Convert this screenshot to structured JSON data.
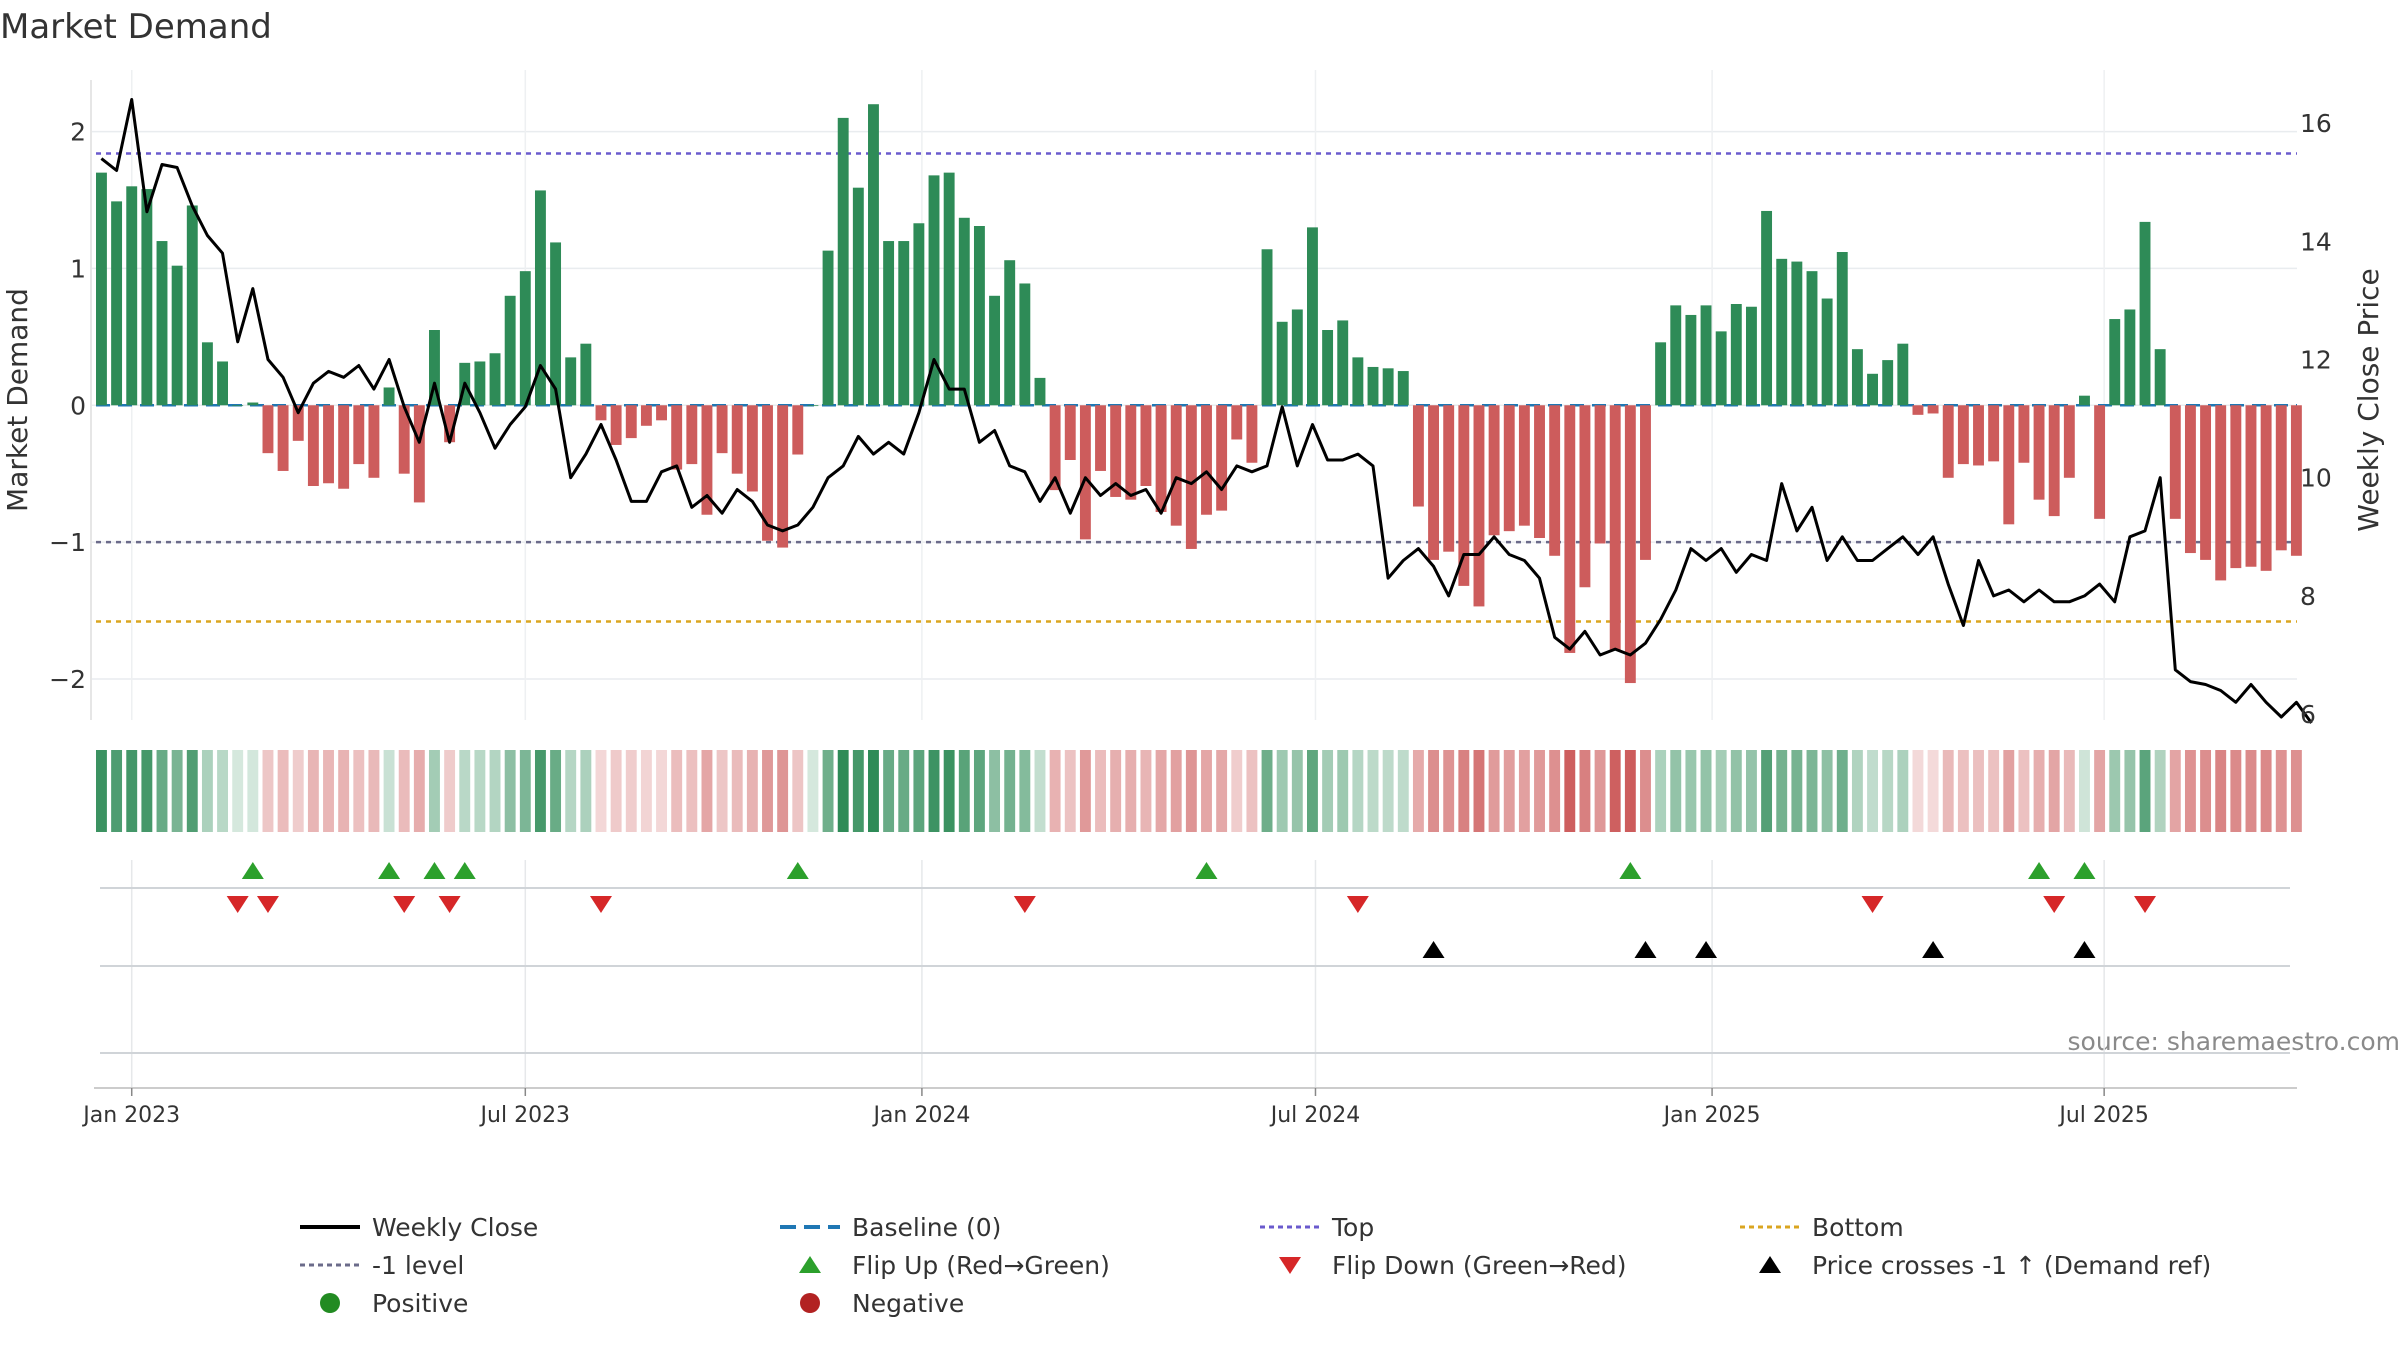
{
  "chart_data": {
    "type": "bar+line",
    "title": "Market Demand",
    "ylabel_left": "Market Demand",
    "ylabel_right": "Weekly Close Price",
    "ylim_left": [
      -2.3,
      2.45
    ],
    "ylim_right": [
      5.9,
      16.9
    ],
    "yticks_left": [
      2,
      1,
      0,
      -1,
      -2
    ],
    "ytick_labels_left": [
      "2",
      "1",
      "0",
      "−1",
      "−2"
    ],
    "yticks_right": [
      16,
      14,
      12,
      10,
      8,
      6
    ],
    "ytick_labels_right": [
      "16",
      "14",
      "12",
      "10",
      "8",
      "6"
    ],
    "start_date": "2022-12-19",
    "xticks": [
      {
        "label": "Jan 2023",
        "week": 2
      },
      {
        "label": "Jul 2023",
        "week": 28
      },
      {
        "label": "Jan 2024",
        "week": 54.2
      },
      {
        "label": "Jul 2024",
        "week": 80.2
      },
      {
        "label": "Jan 2025",
        "week": 106.4
      },
      {
        "label": "Jul 2025",
        "week": 132.3
      }
    ],
    "reference_lines": {
      "top": 1.84,
      "minus_one": -1.0,
      "bottom": -1.58
    },
    "series": [
      {
        "name": "Market Demand",
        "values": [
          1.7,
          1.49,
          1.6,
          1.58,
          1.2,
          1.02,
          1.46,
          0.46,
          0.32,
          0.0,
          0.02,
          -0.35,
          -0.48,
          -0.26,
          -0.59,
          -0.57,
          -0.61,
          -0.43,
          -0.53,
          0.13,
          -0.5,
          -0.71,
          0.55,
          -0.27,
          0.31,
          0.32,
          0.38,
          0.8,
          0.98,
          1.57,
          1.19,
          0.35,
          0.45,
          -0.11,
          -0.29,
          -0.24,
          -0.15,
          -0.11,
          -0.47,
          -0.43,
          -0.8,
          -0.35,
          -0.5,
          -0.63,
          -0.99,
          -1.04,
          -0.36,
          0.0,
          1.13,
          2.1,
          1.59,
          2.2,
          1.2,
          1.2,
          1.33,
          1.68,
          1.7,
          1.37,
          1.31,
          0.8,
          1.06,
          0.89,
          0.2,
          -0.62,
          -0.4,
          -0.98,
          -0.48,
          -0.67,
          -0.69,
          -0.59,
          -0.78,
          -0.88,
          -1.05,
          -0.8,
          -0.77,
          -0.25,
          -0.42,
          1.14,
          0.61,
          0.7,
          1.3,
          0.55,
          0.62,
          0.35,
          0.28,
          0.27,
          0.25,
          -0.74,
          -1.13,
          -1.07,
          -1.32,
          -1.47,
          -0.95,
          -0.92,
          -0.88,
          -0.97,
          -1.1,
          -1.81,
          -1.33,
          -1.01,
          -1.79,
          -2.03,
          -1.13,
          0.46,
          0.73,
          0.66,
          0.73,
          0.54,
          0.74,
          0.72,
          1.42,
          1.07,
          1.05,
          0.98,
          0.78,
          1.12,
          0.41,
          0.23,
          0.33,
          0.45,
          -0.07,
          -0.06,
          -0.53,
          -0.43,
          -0.44,
          -0.41,
          -0.87,
          -0.42,
          -0.69,
          -0.81,
          -0.53,
          0.07,
          -0.83,
          0.63,
          0.7,
          1.34,
          0.41,
          -0.83,
          -1.08,
          -1.13,
          -1.28,
          -1.19,
          -1.18,
          -1.21,
          -1.06,
          -1.1
        ]
      },
      {
        "name": "Weekly Close",
        "values": [
          15.4,
          15.2,
          16.4,
          14.5,
          15.3,
          15.25,
          14.6,
          14.1,
          13.8,
          12.3,
          13.2,
          12.0,
          11.7,
          11.1,
          11.6,
          11.8,
          11.7,
          11.9,
          11.5,
          12.0,
          11.2,
          10.6,
          11.6,
          10.6,
          11.6,
          11.1,
          10.5,
          10.9,
          11.2,
          11.9,
          11.5,
          10.0,
          10.4,
          10.9,
          10.3,
          9.6,
          9.6,
          10.1,
          10.2,
          9.5,
          9.7,
          9.4,
          9.8,
          9.6,
          9.2,
          9.1,
          9.2,
          9.5,
          10.0,
          10.2,
          10.7,
          10.4,
          10.6,
          10.4,
          11.1,
          12.0,
          11.5,
          11.5,
          10.6,
          10.8,
          10.2,
          10.1,
          9.6,
          10.0,
          9.4,
          10.0,
          9.7,
          9.9,
          9.7,
          9.8,
          9.4,
          10.0,
          9.9,
          10.1,
          9.8,
          10.2,
          10.1,
          10.2,
          11.2,
          10.2,
          10.9,
          10.3,
          10.3,
          10.4,
          10.2,
          8.3,
          8.6,
          8.8,
          8.5,
          8.0,
          8.7,
          8.7,
          9.0,
          8.7,
          8.6,
          8.3,
          7.3,
          7.1,
          7.4,
          7.0,
          7.1,
          7.0,
          7.2,
          7.6,
          8.1,
          8.8,
          8.6,
          8.8,
          8.4,
          8.7,
          8.6,
          9.9,
          9.1,
          9.5,
          8.6,
          9.0,
          8.6,
          8.6,
          8.8,
          9.0,
          8.7,
          9.0,
          8.2,
          7.5,
          8.6,
          8.0,
          8.1,
          7.9,
          8.1,
          7.9,
          7.9,
          8.0,
          8.2,
          7.9,
          9.0,
          9.1,
          10.0,
          6.75,
          6.55,
          6.5,
          6.4,
          6.2,
          6.5,
          6.2,
          5.95,
          6.2,
          5.85
        ]
      }
    ],
    "flip_up_weeks": [
      10,
      19,
      22,
      24,
      46,
      73,
      101,
      128,
      131
    ],
    "flip_down_weeks": [
      9,
      11,
      20,
      23,
      33,
      61,
      83,
      117,
      129,
      135
    ],
    "price_cross_weeks": [
      88,
      102,
      106,
      121,
      131
    ],
    "watermark": "source: sharemaestro.com",
    "legend": [
      {
        "key": "weekly_close",
        "label": "Weekly Close"
      },
      {
        "key": "baseline",
        "label": "Baseline (0)"
      },
      {
        "key": "top",
        "label": "Top"
      },
      {
        "key": "bottom",
        "label": "Bottom"
      },
      {
        "key": "minus_one",
        "label": "-1 level"
      },
      {
        "key": "flip_up",
        "label": "Flip Up (Red→Green)"
      },
      {
        "key": "flip_down",
        "label": "Flip Down (Green→Red)"
      },
      {
        "key": "price_cross",
        "label": "Price crosses -1 ↑ (Demand ref)"
      },
      {
        "key": "positive",
        "label": "Positive"
      },
      {
        "key": "negative",
        "label": "Negative"
      }
    ],
    "colors": {
      "positive_bar": "#2e8b57",
      "negative_bar": "#cd5c5c",
      "weekly_close": "#000000",
      "baseline": "#1f77b4",
      "top": "#6a5acd",
      "bottom": "#daa520",
      "minus_one": "#6b6b8a",
      "flip_up": "#2ca02c",
      "flip_down": "#d62728",
      "price_cross": "#000000",
      "positive_dot": "#228b22",
      "negative_dot": "#b22222"
    }
  }
}
